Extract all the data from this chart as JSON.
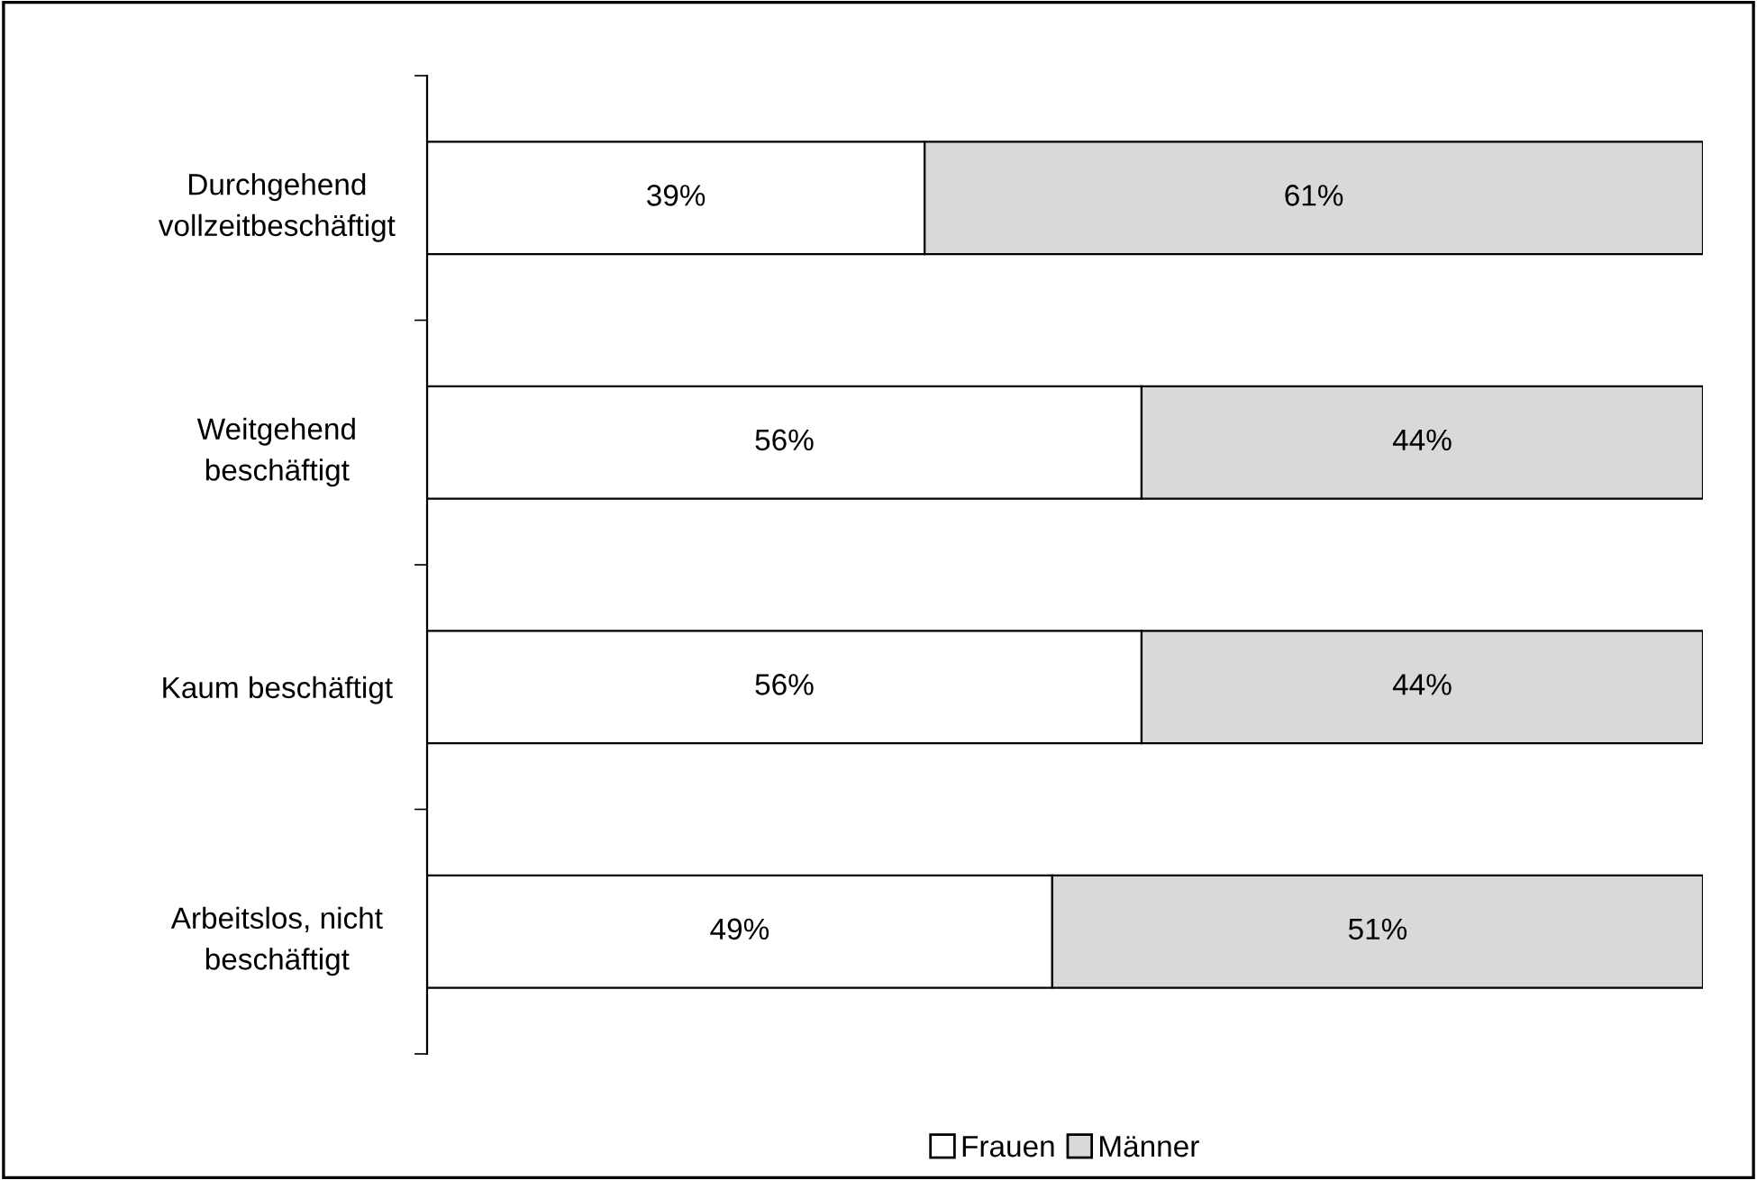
{
  "chart_data": {
    "type": "bar",
    "orientation": "horizontal",
    "stacked": true,
    "categories": [
      "Durchgehend\nvollzeitbeschäftigt",
      "Weitgehend\nbeschäftigt",
      "Kaum beschäftigt",
      "Arbeitslos, nicht\nbeschäftigt"
    ],
    "series": [
      {
        "name": "Frauen",
        "color": "#ffffff",
        "values": [
          39,
          56,
          56,
          49
        ],
        "value_labels": [
          "39%",
          "56%",
          "56%",
          "49%"
        ]
      },
      {
        "name": "Männer",
        "color": "#d9d9d9",
        "values": [
          61,
          44,
          44,
          51
        ],
        "value_labels": [
          "61%",
          "44%",
          "44%",
          "51%"
        ]
      }
    ],
    "tick_labels": "y",
    "legend": "bottom",
    "grid": false
  }
}
